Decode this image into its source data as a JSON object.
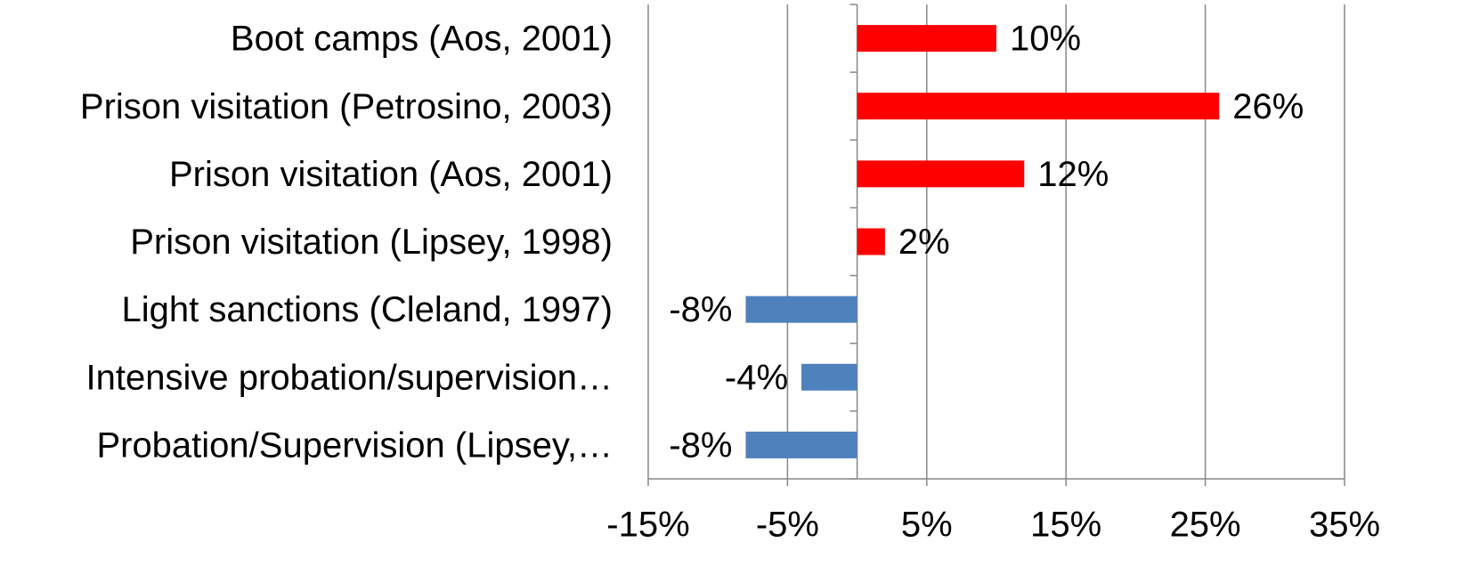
{
  "chart_data": {
    "type": "bar",
    "orientation": "horizontal",
    "categories": [
      "Boot camps (Aos, 2001)",
      "Prison visitation (Petrosino, 2003)",
      "Prison visitation (Aos, 2001)",
      "Prison visitation (Lipsey, 1998)",
      "Light sanctions (Cleland, 1997)",
      "Intensive probation/supervision…",
      "Probation/Supervision (Lipsey,…"
    ],
    "values": [
      10,
      26,
      12,
      2,
      -8,
      -4,
      -8
    ],
    "value_labels": [
      "10%",
      "26%",
      "12%",
      "2%",
      "-8%",
      "-4%",
      "-8%"
    ],
    "colors": [
      "#ff0000",
      "#ff0000",
      "#ff0000",
      "#ff0000",
      "#4f81bd",
      "#4f81bd",
      "#4f81bd"
    ],
    "xlim": [
      -15,
      35
    ],
    "xticks": [
      {
        "value": -15,
        "label": "-15%"
      },
      {
        "value": -5,
        "label": "-5%"
      },
      {
        "value": 5,
        "label": "5%"
      },
      {
        "value": 15,
        "label": "15%"
      },
      {
        "value": 25,
        "label": "25%"
      },
      {
        "value": 35,
        "label": "35%"
      }
    ],
    "grid": true
  }
}
